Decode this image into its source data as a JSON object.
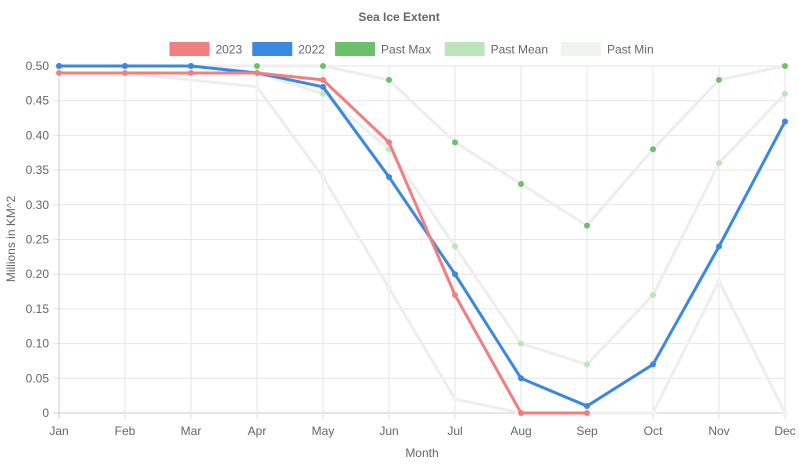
{
  "chart_data": {
    "type": "line",
    "title": "Sea Ice Extent",
    "xlabel": "Month",
    "ylabel": "Millions in KM^2",
    "categories": [
      "Jan",
      "Feb",
      "Mar",
      "Apr",
      "May",
      "Jun",
      "Jul",
      "Aug",
      "Sep",
      "Oct",
      "Nov",
      "Dec"
    ],
    "ylim": [
      0,
      0.5
    ],
    "yticks": [
      "0",
      "0.05",
      "0.10",
      "0.15",
      "0.20",
      "0.25",
      "0.30",
      "0.35",
      "0.40",
      "0.45",
      "0.50"
    ],
    "grid": true,
    "legend": "top",
    "series": [
      {
        "name": "2023",
        "color": "#f08080",
        "values": [
          0.49,
          0.49,
          0.49,
          0.49,
          0.48,
          0.39,
          0.17,
          0.0,
          0.0,
          null,
          null,
          null
        ],
        "show_line": true,
        "line_width": 3
      },
      {
        "name": "2022",
        "color": "#3a88e0",
        "values": [
          0.5,
          0.5,
          0.5,
          0.49,
          0.47,
          0.34,
          0.2,
          0.05,
          0.01,
          0.07,
          0.24,
          0.42
        ],
        "show_line": true,
        "line_width": 3
      },
      {
        "name": "Past Max",
        "color": "#6cc06c",
        "values": [
          0.5,
          0.5,
          0.5,
          0.5,
          0.5,
          0.48,
          0.39,
          0.33,
          0.27,
          0.38,
          0.48,
          0.5
        ],
        "show_line": false,
        "line_width": 3
      },
      {
        "name": "Past Mean",
        "color": "#bde5bd",
        "values": [
          0.5,
          0.5,
          0.5,
          0.49,
          0.46,
          0.38,
          0.24,
          0.1,
          0.07,
          0.17,
          0.36,
          0.46
        ],
        "show_line": false,
        "line_width": 3
      },
      {
        "name": "Past Min",
        "color": "#eef5ee",
        "values": [
          0.49,
          0.49,
          0.48,
          0.47,
          0.34,
          0.18,
          0.02,
          0.0,
          0.0,
          0.0,
          0.19,
          0.0
        ],
        "show_line": false,
        "line_width": 3
      }
    ]
  }
}
